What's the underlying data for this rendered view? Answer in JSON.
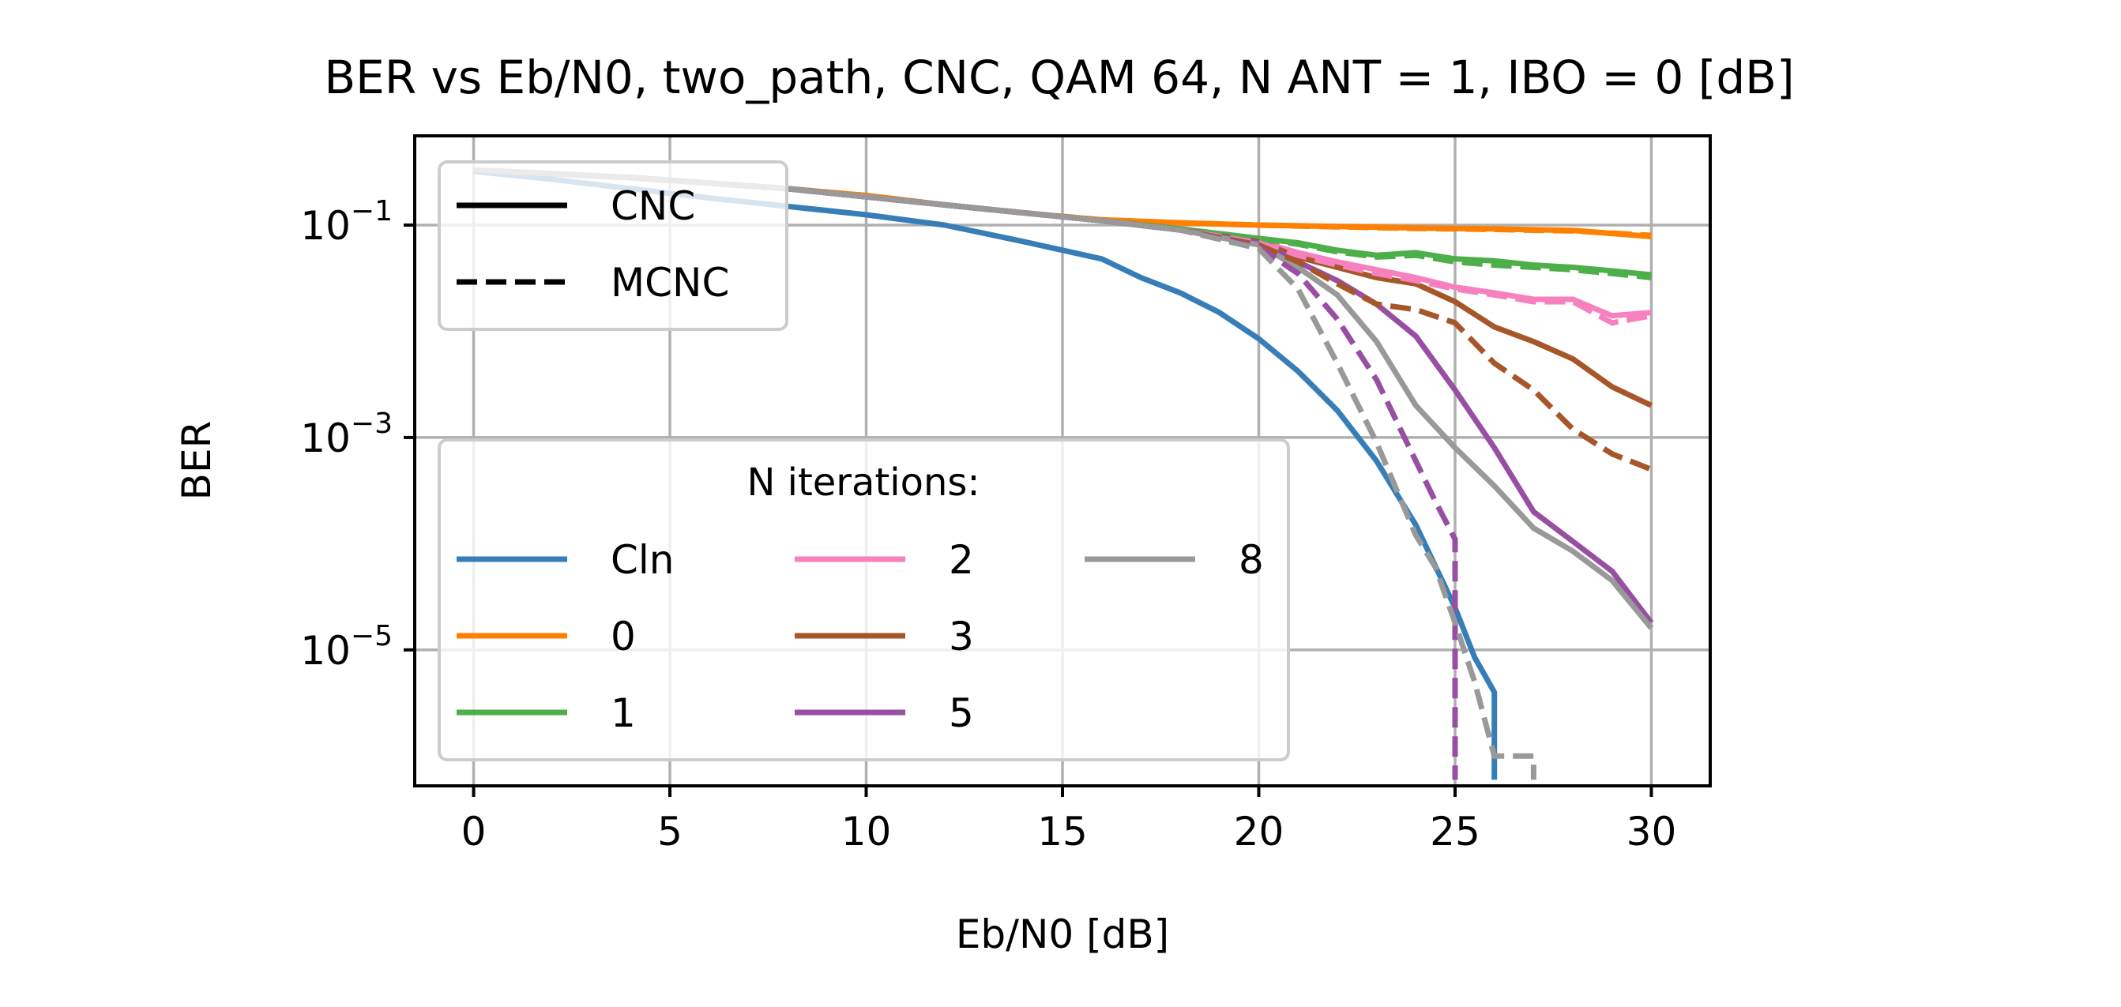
{
  "chart_data": {
    "type": "line",
    "title": "BER vs Eb/N0, two_path, CNC, QAM 64, N ANT = 1, IBO = 0 [dB]",
    "xlabel": "Eb/N0 [dB]",
    "ylabel": "BER",
    "xlim": [
      -1.5,
      31.5
    ],
    "ylim_log10": [
      -6.28,
      -0.16
    ],
    "y_scale": "log",
    "grid": true,
    "x_ticks": [
      {
        "value": 0,
        "label": "0"
      },
      {
        "value": 5,
        "label": "5"
      },
      {
        "value": 10,
        "label": "10"
      },
      {
        "value": 15,
        "label": "15"
      },
      {
        "value": 20,
        "label": "20"
      },
      {
        "value": 25,
        "label": "25"
      },
      {
        "value": 30,
        "label": "30"
      }
    ],
    "y_ticks": [
      {
        "value": 0.1,
        "base": "10",
        "exponent": "−1"
      },
      {
        "value": 0.001,
        "base": "10",
        "exponent": "−3"
      },
      {
        "value": 1e-05,
        "base": "10",
        "exponent": "−5"
      }
    ],
    "style_legend": {
      "placement": "upper-left",
      "entries": [
        {
          "label": "CNC",
          "dash": "solid"
        },
        {
          "label": "MCNC",
          "dash": "dashed"
        }
      ]
    },
    "color_legend": {
      "title": "N iterations:",
      "placement": "lower-left",
      "columns": 3,
      "entries": [
        {
          "label": "Cln",
          "color": "#377eb8"
        },
        {
          "label": "0",
          "color": "#ff7f00"
        },
        {
          "label": "1",
          "color": "#4daf4a"
        },
        {
          "label": "2",
          "color": "#f781bf"
        },
        {
          "label": "3",
          "color": "#a65628"
        },
        {
          "label": "5",
          "color": "#984ea3"
        },
        {
          "label": "8",
          "color": "#999999"
        }
      ]
    },
    "series": [
      {
        "name": "Cln",
        "style": "CNC",
        "color": "#377eb8",
        "x": [
          0,
          2,
          4,
          6,
          8,
          10,
          12,
          14,
          16,
          17,
          18,
          19,
          20,
          21,
          22,
          23,
          24,
          25,
          25.5,
          26,
          26
        ],
        "y": [
          0.32,
          0.27,
          0.22,
          0.18,
          0.15,
          0.125,
          0.1,
          0.07,
          0.048,
          0.032,
          0.023,
          0.015,
          0.0085,
          0.0042,
          0.0018,
          0.0006,
          0.00015,
          2.5e-05,
          8.5e-06,
          4e-06,
          6e-07
        ]
      },
      {
        "name": "0",
        "style": "CNC",
        "color": "#ff7f00",
        "x": [
          0,
          4,
          8,
          10,
          12,
          14,
          16,
          18,
          20,
          22,
          24,
          26,
          28,
          30
        ],
        "y": [
          0.33,
          0.28,
          0.22,
          0.19,
          0.155,
          0.13,
          0.112,
          0.105,
          0.1,
          0.097,
          0.094,
          0.092,
          0.089,
          0.078
        ]
      },
      {
        "name": "0",
        "style": "MCNC",
        "color": "#ff7f00",
        "x": [
          0,
          4,
          8,
          10,
          12,
          14,
          16,
          18,
          20,
          22,
          24,
          26,
          28,
          30
        ],
        "y": [
          0.33,
          0.28,
          0.22,
          0.19,
          0.155,
          0.13,
          0.112,
          0.105,
          0.1,
          0.096,
          0.093,
          0.091,
          0.088,
          0.08
        ]
      },
      {
        "name": "1",
        "style": "CNC",
        "color": "#4daf4a",
        "x": [
          0,
          4,
          8,
          12,
          16,
          18,
          20,
          21,
          22,
          23,
          24,
          25,
          26,
          27,
          28,
          29,
          30
        ],
        "y": [
          0.33,
          0.28,
          0.22,
          0.155,
          0.11,
          0.092,
          0.075,
          0.068,
          0.058,
          0.052,
          0.055,
          0.048,
          0.046,
          0.042,
          0.04,
          0.037,
          0.034
        ]
      },
      {
        "name": "1",
        "style": "MCNC",
        "color": "#4daf4a",
        "x": [
          0,
          4,
          8,
          12,
          16,
          18,
          20,
          21,
          22,
          23,
          24,
          25,
          26,
          27,
          28,
          29,
          30
        ],
        "y": [
          0.33,
          0.28,
          0.22,
          0.155,
          0.11,
          0.092,
          0.074,
          0.066,
          0.056,
          0.05,
          0.052,
          0.045,
          0.042,
          0.04,
          0.038,
          0.035,
          0.032
        ]
      },
      {
        "name": "2",
        "style": "CNC",
        "color": "#f781bf",
        "x": [
          0,
          4,
          8,
          12,
          16,
          18,
          20,
          21,
          22,
          23,
          24,
          25,
          26,
          27,
          28,
          29,
          30
        ],
        "y": [
          0.33,
          0.28,
          0.22,
          0.155,
          0.11,
          0.09,
          0.07,
          0.055,
          0.045,
          0.038,
          0.032,
          0.026,
          0.023,
          0.02,
          0.02,
          0.014,
          0.015
        ]
      },
      {
        "name": "2",
        "style": "MCNC",
        "color": "#f781bf",
        "x": [
          0,
          4,
          8,
          12,
          16,
          18,
          20,
          21,
          22,
          23,
          24,
          25,
          26,
          27,
          28,
          29,
          30
        ],
        "y": [
          0.33,
          0.28,
          0.22,
          0.155,
          0.11,
          0.09,
          0.068,
          0.052,
          0.042,
          0.035,
          0.03,
          0.025,
          0.022,
          0.019,
          0.019,
          0.012,
          0.014
        ]
      },
      {
        "name": "3",
        "style": "CNC",
        "color": "#a65628",
        "x": [
          0,
          4,
          8,
          12,
          16,
          18,
          20,
          21,
          22,
          23,
          24,
          25,
          26,
          27,
          28,
          29,
          30
        ],
        "y": [
          0.33,
          0.28,
          0.22,
          0.155,
          0.11,
          0.09,
          0.07,
          0.05,
          0.04,
          0.032,
          0.028,
          0.019,
          0.011,
          0.008,
          0.0055,
          0.003,
          0.002
        ]
      },
      {
        "name": "3",
        "style": "MCNC",
        "color": "#a65628",
        "x": [
          0,
          4,
          8,
          12,
          16,
          18,
          20,
          21,
          22,
          23,
          24,
          25,
          26,
          27,
          28,
          29,
          30
        ],
        "y": [
          0.33,
          0.28,
          0.22,
          0.155,
          0.11,
          0.09,
          0.065,
          0.045,
          0.028,
          0.018,
          0.016,
          0.012,
          0.005,
          0.0028,
          0.0012,
          0.0007,
          0.0005
        ]
      },
      {
        "name": "5",
        "style": "CNC",
        "color": "#984ea3",
        "x": [
          0,
          4,
          8,
          12,
          16,
          18,
          20,
          21,
          22,
          23,
          24,
          25,
          26,
          27,
          28,
          29,
          30
        ],
        "y": [
          0.33,
          0.28,
          0.22,
          0.155,
          0.11,
          0.09,
          0.068,
          0.045,
          0.03,
          0.018,
          0.009,
          0.0028,
          0.0008,
          0.0002,
          0.000105,
          5.5e-05,
          1.8e-05
        ]
      },
      {
        "name": "5",
        "style": "MCNC",
        "color": "#984ea3",
        "x": [
          0,
          4,
          8,
          12,
          16,
          18,
          20,
          21,
          22,
          23,
          24,
          24.5,
          25,
          25,
          25
        ],
        "y": [
          0.33,
          0.28,
          0.22,
          0.155,
          0.11,
          0.09,
          0.062,
          0.035,
          0.013,
          0.0035,
          0.0006,
          0.00025,
          0.00011,
          2e-06,
          6e-07
        ]
      },
      {
        "name": "8",
        "style": "CNC",
        "color": "#999999",
        "x": [
          0,
          4,
          8,
          12,
          16,
          18,
          20,
          21,
          22,
          23,
          24,
          25,
          26,
          27,
          28,
          29,
          30
        ],
        "y": [
          0.33,
          0.28,
          0.22,
          0.155,
          0.11,
          0.09,
          0.065,
          0.04,
          0.022,
          0.008,
          0.002,
          0.0008,
          0.00035,
          0.00014,
          8.5e-05,
          4.5e-05,
          1.6e-05
        ]
      },
      {
        "name": "8",
        "style": "MCNC",
        "color": "#999999",
        "x": [
          0,
          4,
          8,
          12,
          16,
          18,
          20,
          21,
          22,
          23,
          24,
          24.5,
          25,
          25.5,
          26,
          27,
          27
        ],
        "y": [
          0.33,
          0.28,
          0.22,
          0.155,
          0.11,
          0.09,
          0.06,
          0.025,
          0.005,
          0.0009,
          0.00012,
          6e-05,
          1.8e-05,
          5e-06,
          1e-06,
          1e-06,
          6e-07
        ]
      }
    ]
  }
}
